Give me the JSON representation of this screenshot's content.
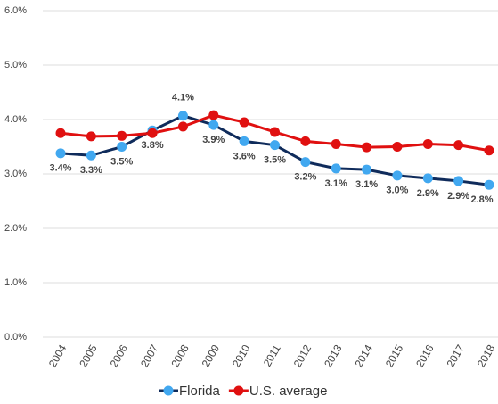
{
  "chart_data": {
    "type": "line",
    "categories": [
      "2004",
      "2005",
      "2006",
      "2007",
      "2008",
      "2009",
      "2010",
      "2011",
      "2012",
      "2013",
      "2014",
      "2015",
      "2016",
      "2017",
      "2018"
    ],
    "series": [
      {
        "name": "Florida",
        "color": "#0f2b5b",
        "marker_color": "#41a8f0",
        "values": [
          3.38,
          3.34,
          3.5,
          3.8,
          4.07,
          3.9,
          3.6,
          3.53,
          3.22,
          3.1,
          3.08,
          2.97,
          2.92,
          2.87,
          2.8
        ],
        "value_labels": [
          "3.4%",
          "3.3%",
          "3.5%",
          "3.8%",
          "4.1%",
          "3.9%",
          "3.6%",
          "3.5%",
          "3.2%",
          "3.1%",
          "3.1%",
          "3.0%",
          "2.9%",
          "2.9%",
          "2.8%"
        ]
      },
      {
        "name": "U.S. average",
        "color": "#e01010",
        "marker_color": "#e01010",
        "values": [
          3.75,
          3.69,
          3.7,
          3.75,
          3.87,
          4.08,
          3.95,
          3.77,
          3.6,
          3.55,
          3.49,
          3.5,
          3.55,
          3.53,
          3.43
        ]
      }
    ],
    "ylim": [
      0,
      6
    ],
    "yticks": [
      {
        "value": 0,
        "label": "0.0%"
      },
      {
        "value": 1,
        "label": "1.0%"
      },
      {
        "value": 2,
        "label": "2.0%"
      },
      {
        "value": 3,
        "label": "3.0%"
      },
      {
        "value": 4,
        "label": "4.0%"
      },
      {
        "value": 5,
        "label": "5.0%"
      },
      {
        "value": 6,
        "label": "6.0%"
      }
    ],
    "grid": true
  }
}
